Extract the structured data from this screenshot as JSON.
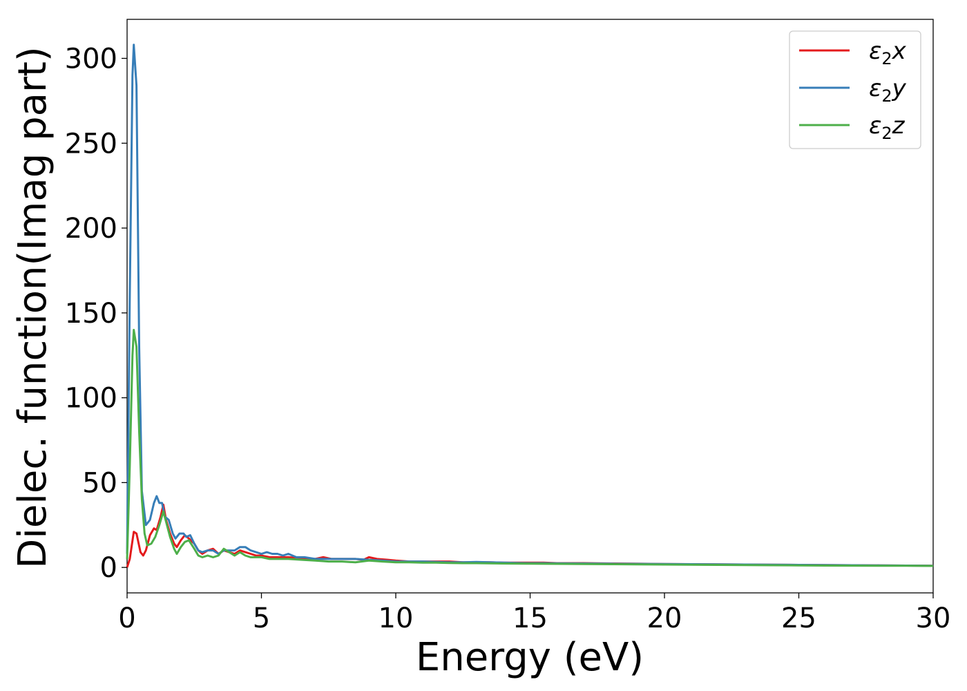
{
  "chart_data": {
    "type": "line",
    "title": "",
    "xlabel": "Energy (eV)",
    "ylabel": "Dielec. function(Imag part)",
    "xlim": [
      0,
      30
    ],
    "ylim": [
      -15,
      323
    ],
    "xticks": [
      0,
      5,
      10,
      15,
      20,
      25,
      30
    ],
    "yticks": [
      0,
      50,
      100,
      150,
      200,
      250,
      300
    ],
    "grid": false,
    "legend_position": "top-right",
    "series": [
      {
        "name": "ε2x",
        "label_main": "ε",
        "label_sub": "2",
        "label_tail": "x",
        "color": "#e41a1c",
        "points": [
          [
            0,
            0
          ],
          [
            0.1,
            5
          ],
          [
            0.25,
            21
          ],
          [
            0.35,
            20
          ],
          [
            0.5,
            9
          ],
          [
            0.6,
            7
          ],
          [
            0.7,
            10
          ],
          [
            0.85,
            19
          ],
          [
            1.0,
            23
          ],
          [
            1.1,
            22
          ],
          [
            1.25,
            30
          ],
          [
            1.35,
            37
          ],
          [
            1.45,
            28
          ],
          [
            1.6,
            20
          ],
          [
            1.75,
            14
          ],
          [
            1.85,
            12
          ],
          [
            2.0,
            16
          ],
          [
            2.15,
            19
          ],
          [
            2.3,
            17
          ],
          [
            2.5,
            14
          ],
          [
            2.65,
            10
          ],
          [
            2.8,
            8
          ],
          [
            3.0,
            10
          ],
          [
            3.2,
            11
          ],
          [
            3.4,
            8
          ],
          [
            3.6,
            10
          ],
          [
            3.8,
            9
          ],
          [
            4.0,
            8
          ],
          [
            4.2,
            10
          ],
          [
            4.4,
            9
          ],
          [
            4.6,
            8
          ],
          [
            4.8,
            7
          ],
          [
            5.0,
            7
          ],
          [
            5.3,
            6
          ],
          [
            5.6,
            6
          ],
          [
            6.0,
            6
          ],
          [
            6.5,
            5.5
          ],
          [
            7.0,
            5
          ],
          [
            7.3,
            6
          ],
          [
            7.6,
            5
          ],
          [
            8.0,
            5
          ],
          [
            8.5,
            5
          ],
          [
            8.8,
            4.5
          ],
          [
            9.0,
            6
          ],
          [
            9.3,
            5
          ],
          [
            9.7,
            4.5
          ],
          [
            10,
            4
          ],
          [
            10.5,
            3.5
          ],
          [
            11,
            3.5
          ],
          [
            11.5,
            3.5
          ],
          [
            12,
            3.5
          ],
          [
            12.5,
            3
          ],
          [
            13,
            3
          ],
          [
            13.5,
            3
          ],
          [
            14,
            2.8
          ],
          [
            14.5,
            2.8
          ],
          [
            15,
            2.8
          ],
          [
            15.5,
            2.8
          ],
          [
            16,
            2.5
          ],
          [
            17,
            2.5
          ],
          [
            18,
            2.3
          ],
          [
            19,
            2.2
          ],
          [
            20,
            2
          ],
          [
            21,
            1.9
          ],
          [
            22,
            1.8
          ],
          [
            23,
            1.7
          ],
          [
            24,
            1.6
          ],
          [
            25,
            1.5
          ],
          [
            26,
            1.4
          ],
          [
            27,
            1.3
          ],
          [
            28,
            1.2
          ],
          [
            29,
            1.1
          ],
          [
            30,
            1
          ]
        ]
      },
      {
        "name": "ε2y",
        "label_main": "ε",
        "label_sub": "2",
        "label_tail": "y",
        "color": "#377eb8",
        "points": [
          [
            0,
            8
          ],
          [
            0.1,
            160
          ],
          [
            0.2,
            290
          ],
          [
            0.25,
            308
          ],
          [
            0.35,
            284
          ],
          [
            0.45,
            130
          ],
          [
            0.55,
            45
          ],
          [
            0.7,
            25
          ],
          [
            0.85,
            28
          ],
          [
            1.0,
            38
          ],
          [
            1.1,
            42
          ],
          [
            1.2,
            38
          ],
          [
            1.3,
            38
          ],
          [
            1.4,
            30
          ],
          [
            1.55,
            28
          ],
          [
            1.7,
            20
          ],
          [
            1.8,
            17
          ],
          [
            1.95,
            20
          ],
          [
            2.1,
            20
          ],
          [
            2.2,
            18
          ],
          [
            2.35,
            19
          ],
          [
            2.5,
            14
          ],
          [
            2.65,
            10
          ],
          [
            2.8,
            9
          ],
          [
            3.0,
            10
          ],
          [
            3.2,
            10
          ],
          [
            3.4,
            8
          ],
          [
            3.6,
            10
          ],
          [
            3.8,
            10
          ],
          [
            4.0,
            10
          ],
          [
            4.2,
            12
          ],
          [
            4.4,
            12
          ],
          [
            4.6,
            10
          ],
          [
            4.8,
            9
          ],
          [
            5.0,
            8
          ],
          [
            5.2,
            9
          ],
          [
            5.4,
            8
          ],
          [
            5.6,
            8
          ],
          [
            5.8,
            7
          ],
          [
            6.0,
            8
          ],
          [
            6.3,
            6
          ],
          [
            6.6,
            6
          ],
          [
            7.0,
            5
          ],
          [
            7.5,
            5
          ],
          [
            8.0,
            5
          ],
          [
            8.5,
            5
          ],
          [
            9.0,
            4.5
          ],
          [
            9.5,
            4
          ],
          [
            10,
            3.5
          ],
          [
            10.5,
            3.5
          ],
          [
            11,
            3.5
          ],
          [
            11.5,
            3.2
          ],
          [
            12,
            3
          ],
          [
            12.5,
            3
          ],
          [
            13,
            3.2
          ],
          [
            13.5,
            3
          ],
          [
            14,
            2.8
          ],
          [
            14.5,
            2.6
          ],
          [
            15,
            2.5
          ],
          [
            15.5,
            2.5
          ],
          [
            16,
            2.4
          ],
          [
            17,
            2.3
          ],
          [
            18,
            2.2
          ],
          [
            19,
            2.1
          ],
          [
            20,
            2
          ],
          [
            21,
            1.9
          ],
          [
            22,
            1.8
          ],
          [
            23,
            1.7
          ],
          [
            24,
            1.6
          ],
          [
            25,
            1.5
          ],
          [
            26,
            1.4
          ],
          [
            27,
            1.3
          ],
          [
            28,
            1.2
          ],
          [
            29,
            1.1
          ],
          [
            30,
            1
          ]
        ]
      },
      {
        "name": "ε2z",
        "label_main": "ε",
        "label_sub": "2",
        "label_tail": "z",
        "color": "#4daf4a",
        "points": [
          [
            0,
            5
          ],
          [
            0.1,
            60
          ],
          [
            0.2,
            125
          ],
          [
            0.25,
            140
          ],
          [
            0.35,
            130
          ],
          [
            0.45,
            80
          ],
          [
            0.55,
            40
          ],
          [
            0.65,
            20
          ],
          [
            0.75,
            13
          ],
          [
            0.9,
            14
          ],
          [
            1.05,
            18
          ],
          [
            1.2,
            25
          ],
          [
            1.35,
            33
          ],
          [
            1.45,
            27
          ],
          [
            1.6,
            18
          ],
          [
            1.75,
            11
          ],
          [
            1.85,
            8
          ],
          [
            2.0,
            12
          ],
          [
            2.15,
            15
          ],
          [
            2.3,
            16
          ],
          [
            2.5,
            11
          ],
          [
            2.65,
            7
          ],
          [
            2.8,
            6
          ],
          [
            3.0,
            7
          ],
          [
            3.2,
            6
          ],
          [
            3.4,
            7
          ],
          [
            3.6,
            11
          ],
          [
            3.8,
            9
          ],
          [
            4.0,
            7
          ],
          [
            4.2,
            9
          ],
          [
            4.4,
            7
          ],
          [
            4.6,
            6
          ],
          [
            4.8,
            6
          ],
          [
            5.0,
            6
          ],
          [
            5.3,
            5
          ],
          [
            5.6,
            5
          ],
          [
            6.0,
            5
          ],
          [
            6.5,
            4.5
          ],
          [
            7.0,
            4
          ],
          [
            7.5,
            3.5
          ],
          [
            8.0,
            3.5
          ],
          [
            8.5,
            3
          ],
          [
            9.0,
            4
          ],
          [
            9.5,
            3.5
          ],
          [
            10,
            3
          ],
          [
            10.5,
            3
          ],
          [
            11,
            2.8
          ],
          [
            11.5,
            2.8
          ],
          [
            12,
            2.6
          ],
          [
            12.5,
            2.5
          ],
          [
            13,
            2.5
          ],
          [
            14,
            2.3
          ],
          [
            15,
            2.2
          ],
          [
            16,
            2.1
          ],
          [
            17,
            2
          ],
          [
            18,
            1.9
          ],
          [
            19,
            1.8
          ],
          [
            20,
            1.7
          ],
          [
            21,
            1.6
          ],
          [
            22,
            1.5
          ],
          [
            23,
            1.4
          ],
          [
            24,
            1.3
          ],
          [
            25,
            1.2
          ],
          [
            26,
            1.1
          ],
          [
            27,
            1.05
          ],
          [
            28,
            1
          ],
          [
            29,
            1
          ],
          [
            30,
            0.9
          ]
        ]
      }
    ]
  }
}
